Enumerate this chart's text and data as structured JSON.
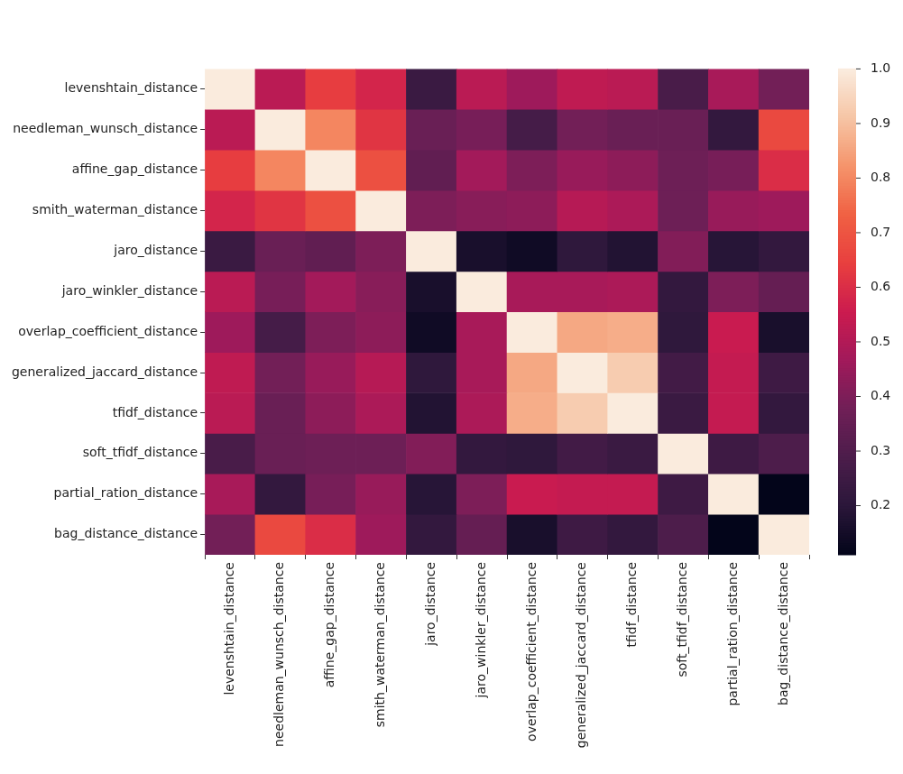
{
  "chart_data": {
    "type": "heatmap",
    "categories": [
      "levenshtain_distance",
      "needleman_wunsch_distance",
      "affine_gap_distance",
      "smith_waterman_distance",
      "jaro_distance",
      "jaro_winkler_distance",
      "overlap_coefficient_distance",
      "generalized_jaccard_distance",
      "tfidf_distance",
      "soft_tfidf_distance",
      "partial_ration_distance",
      "bag_distance_distance"
    ],
    "y_categories": [
      "levenshtain_distance",
      "needleman_wunsch_distance",
      "affine_gap_distance",
      "smith_waterman_distance",
      "jaro_distance",
      "jaro_winkler_distance",
      "overlap_coefficient_distance",
      "generalized_jaccard_distance",
      "tfidf_distance",
      "soft_tfidf_distance",
      "partial_ration_distance",
      "bag_distance_distance"
    ],
    "cells": [
      [
        1.0,
        0.52,
        0.64,
        0.58,
        0.24,
        0.52,
        0.46,
        0.53,
        0.52,
        0.28,
        0.48,
        0.38
      ],
      [
        0.52,
        1.0,
        0.8,
        0.62,
        0.36,
        0.39,
        0.27,
        0.38,
        0.36,
        0.36,
        0.22,
        0.67
      ],
      [
        0.64,
        0.8,
        1.0,
        0.69,
        0.34,
        0.47,
        0.4,
        0.45,
        0.43,
        0.37,
        0.39,
        0.6
      ],
      [
        0.58,
        0.62,
        0.69,
        1.0,
        0.4,
        0.42,
        0.43,
        0.51,
        0.49,
        0.37,
        0.45,
        0.46
      ],
      [
        0.24,
        0.36,
        0.34,
        0.4,
        1.0,
        0.16,
        0.14,
        0.21,
        0.18,
        0.41,
        0.19,
        0.22
      ],
      [
        0.52,
        0.39,
        0.47,
        0.42,
        0.16,
        1.0,
        0.48,
        0.48,
        0.49,
        0.22,
        0.4,
        0.35
      ],
      [
        0.46,
        0.27,
        0.4,
        0.43,
        0.14,
        0.48,
        1.0,
        0.86,
        0.87,
        0.21,
        0.55,
        0.16
      ],
      [
        0.53,
        0.38,
        0.45,
        0.51,
        0.21,
        0.48,
        0.86,
        1.0,
        0.93,
        0.26,
        0.54,
        0.25
      ],
      [
        0.52,
        0.36,
        0.43,
        0.49,
        0.18,
        0.49,
        0.87,
        0.93,
        1.0,
        0.24,
        0.54,
        0.22
      ],
      [
        0.28,
        0.36,
        0.37,
        0.37,
        0.41,
        0.22,
        0.21,
        0.26,
        0.24,
        1.0,
        0.25,
        0.29
      ],
      [
        0.48,
        0.22,
        0.39,
        0.45,
        0.19,
        0.4,
        0.55,
        0.54,
        0.54,
        0.25,
        1.0,
        0.11
      ],
      [
        0.38,
        0.67,
        0.6,
        0.46,
        0.22,
        0.35,
        0.16,
        0.25,
        0.22,
        0.29,
        0.11,
        1.0
      ]
    ],
    "clim": [
      0.11,
      1.0
    ],
    "cticks": [
      0.2,
      0.3,
      0.4,
      0.5,
      0.6,
      0.7,
      0.8,
      0.9,
      {
        "value": 1.0,
        "label": "1.0"
      }
    ]
  }
}
